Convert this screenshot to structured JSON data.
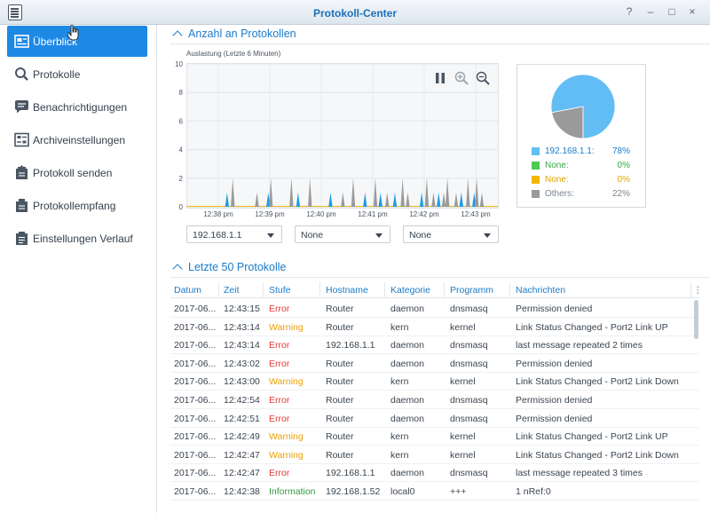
{
  "window": {
    "title": "Protokoll-Center",
    "controls": [
      "?",
      "–",
      "□",
      "×"
    ]
  },
  "sidebar": {
    "items": [
      {
        "label": "Überblick",
        "icon": "overview-icon",
        "active": true
      },
      {
        "label": "Protokolle",
        "icon": "search-icon",
        "active": false
      },
      {
        "label": "Benachrichtigungen",
        "icon": "speech-bubble-icon",
        "active": false
      },
      {
        "label": "Archiveinstellungen",
        "icon": "archive-settings-icon",
        "active": false
      },
      {
        "label": "Protokoll senden",
        "icon": "send-icon",
        "active": false
      },
      {
        "label": "Protokollempfang",
        "icon": "receive-icon",
        "active": false
      },
      {
        "label": "Einstellungen Verlauf",
        "icon": "history-icon",
        "active": false
      }
    ]
  },
  "overview": {
    "section_title": "Anzahl an Protokollen",
    "chart_caption": "Auslastung (Letzte 6 Minuten)",
    "filters": [
      "192.168.1.1",
      "None",
      "None"
    ]
  },
  "chart_data": [
    {
      "type": "bar",
      "title": "Auslastung (Letzte 6 Minuten)",
      "ylim": [
        0,
        10
      ],
      "yticks": [
        0,
        2,
        4,
        6,
        8,
        10
      ],
      "xticks": [
        "12:38 pm",
        "12:39 pm",
        "12:40 pm",
        "12:41 pm",
        "12:42 pm",
        "12:43 pm"
      ],
      "grid": true,
      "series": [
        {
          "name": "192.168.1.1",
          "color": "#1e9be6",
          "points": [
            [
              0.17,
              1
            ],
            [
              0.97,
              1
            ],
            [
              1.55,
              1
            ],
            [
              2.18,
              1
            ],
            [
              2.85,
              1
            ],
            [
              3.15,
              1
            ],
            [
              3.43,
              1
            ],
            [
              3.95,
              1
            ],
            [
              4.28,
              1
            ],
            [
              4.72,
              1
            ],
            [
              4.97,
              1
            ]
          ]
        },
        {
          "name": "Others",
          "color": "#9a9a9a",
          "points": [
            [
              0.28,
              2
            ],
            [
              0.75,
              1
            ],
            [
              1.02,
              2
            ],
            [
              1.42,
              2
            ],
            [
              1.78,
              2
            ],
            [
              2.42,
              1
            ],
            [
              2.62,
              2
            ],
            [
              3.05,
              2
            ],
            [
              3.28,
              1
            ],
            [
              3.58,
              2
            ],
            [
              3.68,
              1
            ],
            [
              4.05,
              2
            ],
            [
              4.18,
              1
            ],
            [
              4.38,
              1
            ],
            [
              4.45,
              2
            ],
            [
              4.62,
              1
            ],
            [
              4.85,
              2
            ],
            [
              5.02,
              2
            ],
            [
              5.12,
              1
            ]
          ]
        }
      ]
    },
    {
      "type": "pie",
      "slices": [
        {
          "label": "192.168.1.1:",
          "value": 78,
          "display": "78%",
          "color": "#61bdf4"
        },
        {
          "label": "None:",
          "value": 0,
          "display": "0%",
          "color": "#4ccb55"
        },
        {
          "label": "None:",
          "value": 0,
          "display": "0%",
          "color": "#f2b705"
        },
        {
          "label": "Others:",
          "value": 22,
          "display": "22%",
          "color": "#9a9a9a"
        }
      ]
    }
  ],
  "logs": {
    "section_title": "Letzte 50 Protokolle",
    "columns": [
      "Datum",
      "Zeit",
      "Stufe",
      "Hostname",
      "Kategorie",
      "Programm",
      "Nachrichten"
    ],
    "rows": [
      [
        "2017-06...",
        "12:43:15",
        "Error",
        "Router",
        "daemon",
        "dnsmasq",
        "Permission denied"
      ],
      [
        "2017-06...",
        "12:43:14",
        "Warning",
        "Router",
        "kern",
        "kernel",
        "Link Status Changed - Port2 Link UP"
      ],
      [
        "2017-06...",
        "12:43:14",
        "Error",
        "192.168.1.1",
        "daemon",
        "dnsmasq",
        "last message repeated 2 times"
      ],
      [
        "2017-06...",
        "12:43:02",
        "Error",
        "Router",
        "daemon",
        "dnsmasq",
        "Permission denied"
      ],
      [
        "2017-06...",
        "12:43:00",
        "Warning",
        "Router",
        "kern",
        "kernel",
        "Link Status Changed - Port2 Link Down"
      ],
      [
        "2017-06...",
        "12:42:54",
        "Error",
        "Router",
        "daemon",
        "dnsmasq",
        "Permission denied"
      ],
      [
        "2017-06...",
        "12:42:51",
        "Error",
        "Router",
        "daemon",
        "dnsmasq",
        "Permission denied"
      ],
      [
        "2017-06...",
        "12:42:49",
        "Warning",
        "Router",
        "kern",
        "kernel",
        "Link Status Changed - Port2 Link UP"
      ],
      [
        "2017-06...",
        "12:42:47",
        "Warning",
        "Router",
        "kern",
        "kernel",
        "Link Status Changed - Port2 Link Down"
      ],
      [
        "2017-06...",
        "12:42:47",
        "Error",
        "192.168.1.1",
        "daemon",
        "dnsmasq",
        "last message repeated 3 times"
      ],
      [
        "2017-06...",
        "12:42:38",
        "Information",
        "192.168.1.52",
        "local0",
        "+++",
        "1 nRef:0"
      ]
    ],
    "level_colors": {
      "Error": "#e53935",
      "Warning": "#f0a000",
      "Information": "#2e9e3e"
    }
  }
}
